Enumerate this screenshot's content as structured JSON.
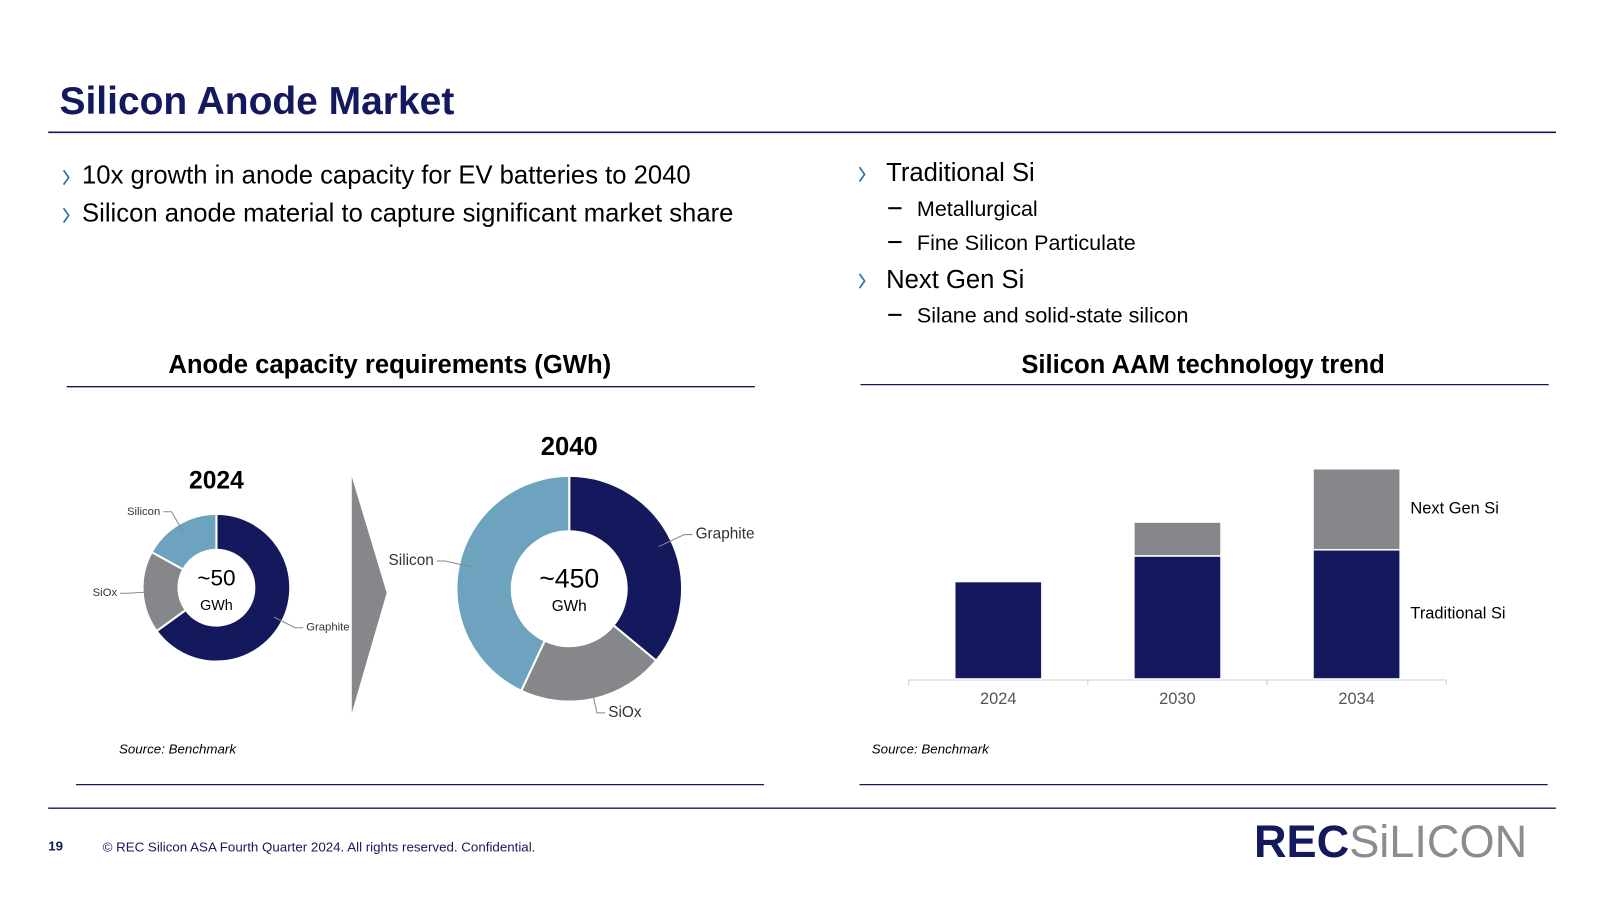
{
  "header": {
    "title": "Silicon Anode Market"
  },
  "left_bullets": [
    "10x growth in anode capacity for EV batteries to 2040",
    "Silicon anode material to capture significant market share"
  ],
  "right_bullets": [
    {
      "text": "Traditional Si",
      "sub": [
        "Metallurgical",
        "Fine Silicon Particulate"
      ]
    },
    {
      "text": "Next Gen Si",
      "sub": [
        "Silane and solid-state silicon"
      ]
    }
  ],
  "panels": [
    {
      "title": "Anode capacity requirements (GWh)",
      "source": "Source: Benchmark"
    },
    {
      "title": "Silicon AAM technology trend",
      "source": "Source: Benchmark"
    }
  ],
  "chart_data": [
    {
      "type": "donut",
      "title": "2024",
      "center_label": "~50",
      "center_unit": "GWh",
      "categories": [
        "Graphite",
        "SiOx",
        "Silicon"
      ],
      "values": [
        65,
        18,
        17
      ],
      "colors": [
        "#14195e",
        "#85878a",
        "#6ea3bf"
      ]
    },
    {
      "type": "donut",
      "title": "2040",
      "center_label": "~450",
      "center_unit": "GWh",
      "categories": [
        "Graphite",
        "SiOx",
        "Silicon"
      ],
      "values": [
        36,
        21,
        43
      ],
      "colors": [
        "#14195e",
        "#85878a",
        "#6ea3bf"
      ]
    },
    {
      "type": "bar",
      "stacked": true,
      "categories": [
        "2024",
        "2030",
        "2034"
      ],
      "ylim": [
        0,
        220
      ],
      "series": [
        {
          "name": "Traditional Si",
          "color": "#14195e",
          "values": [
            95,
            120,
            126
          ]
        },
        {
          "name": "Next Gen Si",
          "color": "#85878a",
          "values": [
            0,
            33,
            79
          ]
        }
      ]
    }
  ],
  "footer": {
    "page": "19",
    "text": "© REC Silicon ASA Fourth Quarter 2024. All rights reserved. Confidential.",
    "logo": [
      "REC",
      "SiLICON"
    ]
  }
}
